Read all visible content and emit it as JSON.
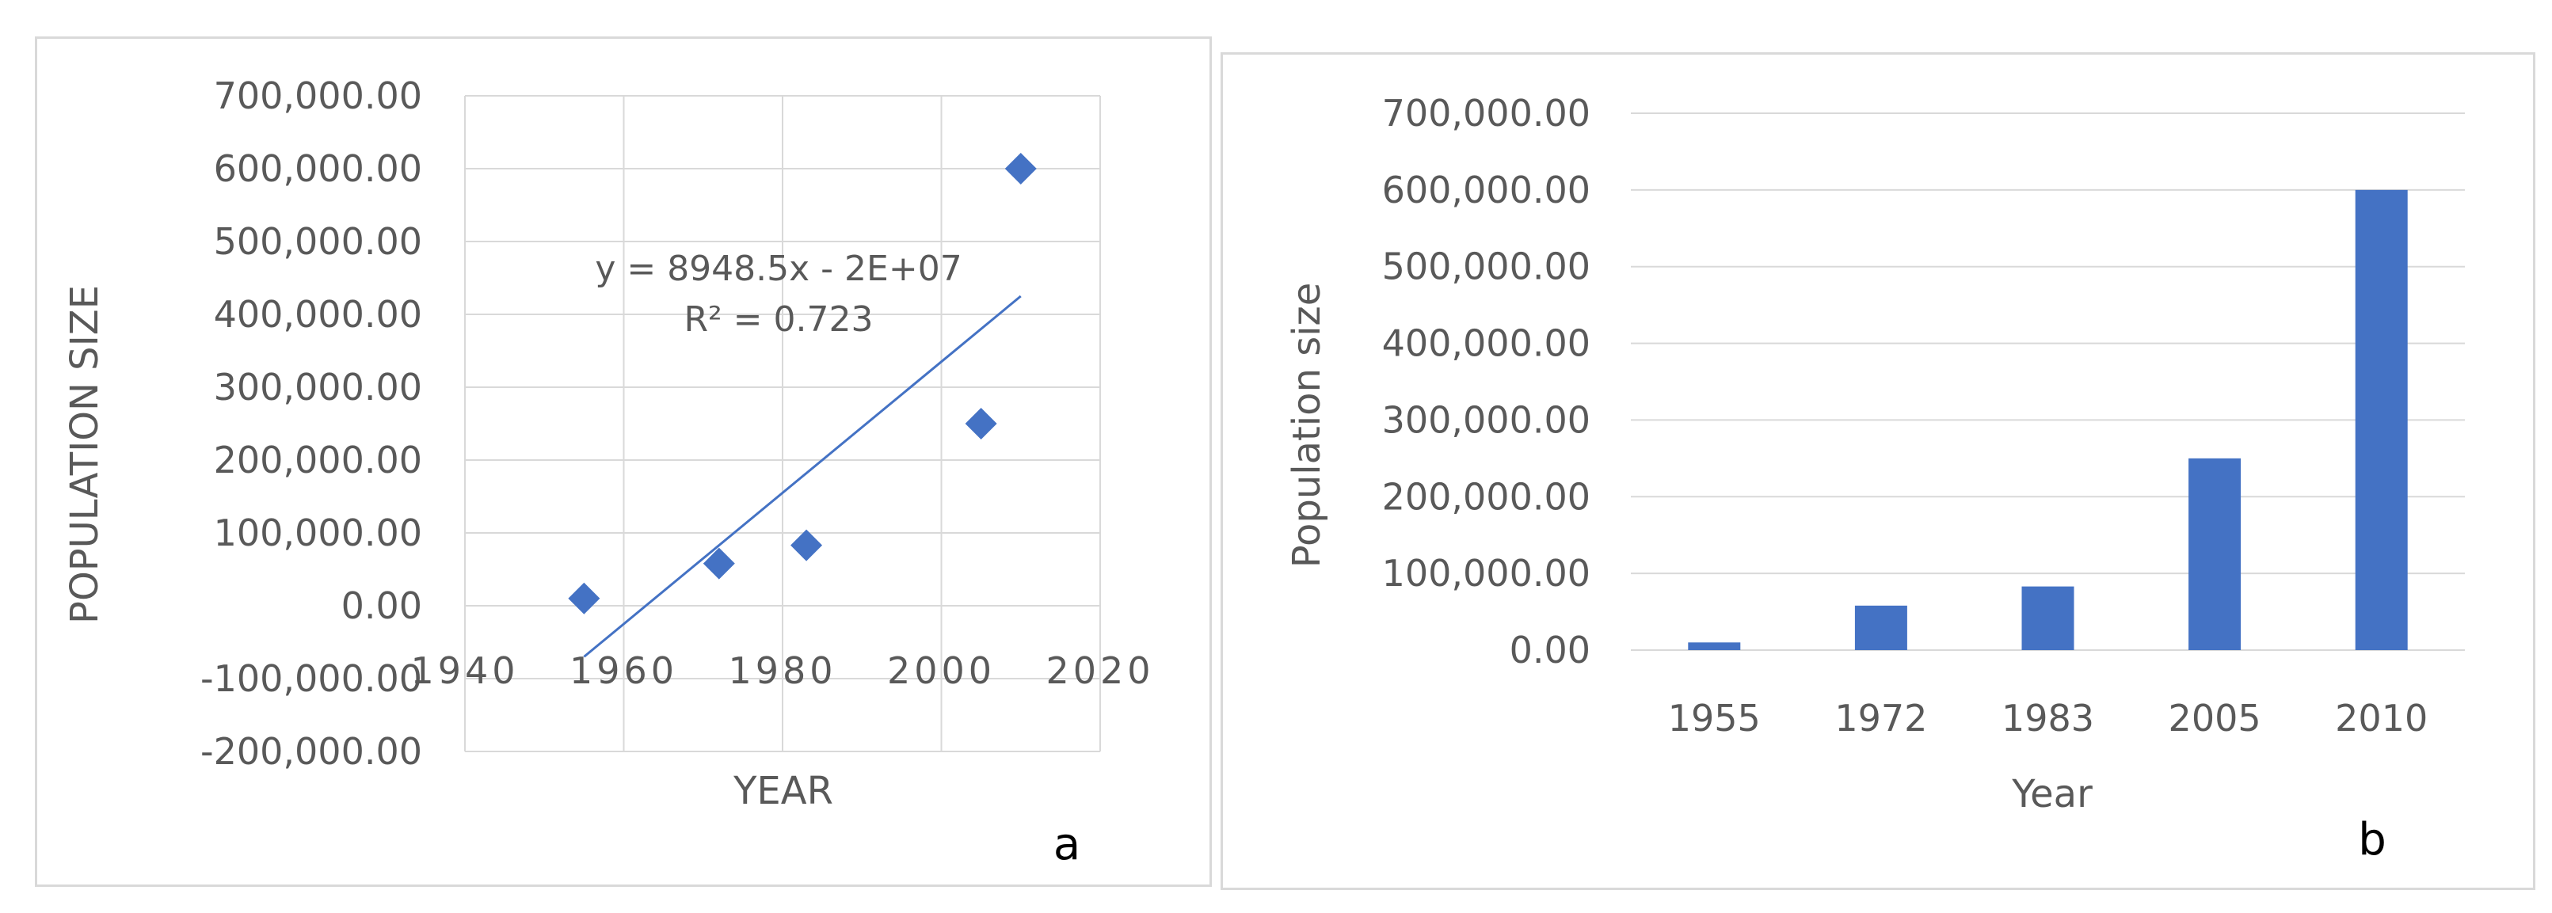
{
  "colors": {
    "series": "#4472c4",
    "grid": "#d9d9d9",
    "text": "#595959"
  },
  "chart_data": [
    {
      "type": "scatter",
      "panel_label": "a",
      "xlabel": "YEAR",
      "ylabel": "POPULATION SIZE",
      "xlim": [
        1940,
        2020
      ],
      "ylim": [
        -200000,
        700000
      ],
      "x_ticks": [
        "1940",
        "1960",
        "1980",
        "2000",
        "2020"
      ],
      "y_ticks": [
        "700,000.00",
        "600,000.00",
        "500,000.00",
        "400,000.00",
        "300,000.00",
        "200,000.00",
        "100,000.00",
        "0.00",
        "-100,000.00",
        "-200,000.00"
      ],
      "grid": true,
      "points": [
        {
          "x": 1955,
          "y": 10000
        },
        {
          "x": 1972,
          "y": 58000
        },
        {
          "x": 1983,
          "y": 83000
        },
        {
          "x": 2005,
          "y": 250000
        },
        {
          "x": 2010,
          "y": 600000
        }
      ],
      "trendline": {
        "type": "linear",
        "x_range": [
          1955,
          2010
        ],
        "equation": "y = 8948.5x - 2E+07",
        "r_squared": "R² = 0.723",
        "y_start": -70000,
        "y_end": 425000
      }
    },
    {
      "type": "bar",
      "panel_label": "b",
      "xlabel": "Year",
      "ylabel": "Population size",
      "ylim": [
        0,
        700000
      ],
      "y_ticks": [
        "700,000.00",
        "600,000.00",
        "500,000.00",
        "400,000.00",
        "300,000.00",
        "200,000.00",
        "100,000.00",
        "0.00"
      ],
      "grid": true,
      "categories": [
        "1955",
        "1972",
        "1983",
        "2005",
        "2010"
      ],
      "values": [
        10000,
        58000,
        83000,
        250000,
        600000
      ]
    }
  ]
}
